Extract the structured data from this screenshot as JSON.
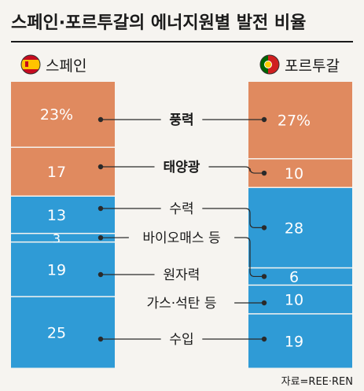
{
  "chart_data": {
    "type": "bar",
    "subtype": "paired-stacked-columns",
    "title": "스페인·포르투갈의 에너지원별 발전 비율",
    "unit": "%",
    "source": "자료=REE·REN",
    "colors": {
      "renewable_highlight": "#e08a5f",
      "other": "#2f9bd6",
      "connector": "#2a2a2a",
      "title_rule": "#1a1a1a",
      "flag_spain_red": "#c60b1e",
      "flag_spain_yellow": "#ffc400",
      "flag_portugal_green": "#006600",
      "flag_portugal_red": "#d01f1f"
    },
    "columns": [
      {
        "name": "스페인",
        "flag": "spain-flag",
        "segments": [
          {
            "category": "풍력",
            "value": 23,
            "label": "23%"
          },
          {
            "category": "태양광",
            "value": 17,
            "label": "17"
          },
          {
            "category": "수력",
            "value": 13,
            "label": "13"
          },
          {
            "category": "바이오매스 등",
            "value": 3,
            "label": "3"
          },
          {
            "category": "원자력",
            "value": 19,
            "label": "19"
          },
          {
            "category": "가스·석탄 등",
            "value": 0,
            "label": ""
          },
          {
            "category": "수입",
            "value": 25,
            "label": "25"
          }
        ]
      },
      {
        "name": "포르투갈",
        "flag": "portugal-flag",
        "segments": [
          {
            "category": "풍력",
            "value": 27,
            "label": "27%"
          },
          {
            "category": "태양광",
            "value": 10,
            "label": "10"
          },
          {
            "category": "수력",
            "value": 28,
            "label": "28"
          },
          {
            "category": "바이오매스 등",
            "value": 6,
            "label": "6"
          },
          {
            "category": "원자력",
            "value": 0,
            "label": ""
          },
          {
            "category": "가스·석탄 등",
            "value": 10,
            "label": "10"
          },
          {
            "category": "수입",
            "value": 19,
            "label": "19"
          }
        ]
      }
    ],
    "categories": [
      {
        "name": "풍력",
        "highlight": true,
        "bold": true
      },
      {
        "name": "태양광",
        "highlight": true,
        "bold": true
      },
      {
        "name": "수력",
        "highlight": false,
        "bold": false
      },
      {
        "name": "바이오매스 등",
        "highlight": false,
        "bold": false
      },
      {
        "name": "원자력",
        "highlight": false,
        "bold": false
      },
      {
        "name": "가스·석탄 등",
        "highlight": false,
        "bold": false
      },
      {
        "name": "수입",
        "highlight": false,
        "bold": false
      }
    ]
  }
}
